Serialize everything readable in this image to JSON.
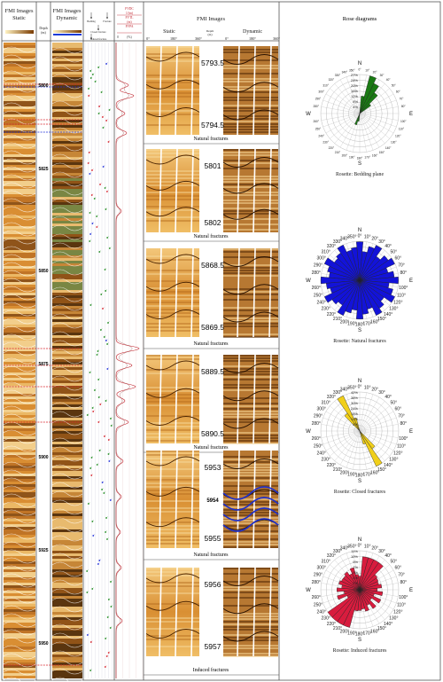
{
  "log_headers": {
    "fmi_static": "FMI Images",
    "static_sub": "Static",
    "depth": "Depth",
    "depth_unit": "(m)",
    "fmi_dynamic": "FMI Images",
    "dynamic_sub": "Dynamic",
    "legend_bedding": "Bedding",
    "legend_fracture": "Fracture",
    "legend_closed": "Closed fracture",
    "legend_induced": "Induced fracture",
    "curve_fvdc": "FVDC",
    "curve_fvdc_unit": "1/(m)",
    "curve_fvtl": "FVTL",
    "curve_fvtl_unit": "(m)",
    "curve_fvpa": "FVPA",
    "curve_fvpa_unit": "(%)",
    "curve_axis_start": "0"
  },
  "depth_ticks": [
    "5800",
    "5825",
    "5850",
    "5875",
    "5900",
    "5925",
    "5950"
  ],
  "detail_panel": {
    "header": "FMI Images",
    "static": "Static",
    "dynamic": "Dynamic",
    "depth_col": "Depth",
    "depth_unit": "(m)",
    "az_labels": [
      "0°",
      "180°",
      "360°"
    ]
  },
  "detail_groups": [
    {
      "top": "5793.5",
      "bottom": "5794.5",
      "caption": "Natural fractures"
    },
    {
      "top": "5801",
      "bottom": "5802",
      "caption": "Natural fractures"
    },
    {
      "top": "5868.5",
      "bottom": "5869.5",
      "caption": "Natural fractures"
    },
    {
      "top": "5889.5",
      "bottom": "5890.5",
      "caption": "Natural fractures"
    },
    {
      "top": "5953",
      "mid": "5954",
      "bottom": "5955",
      "caption": "Natural fractures"
    },
    {
      "top": "5956",
      "bottom": "5957",
      "caption": "Induced fractures"
    }
  ],
  "rose_header": "Rose diagrams",
  "roses": [
    {
      "caption": "Rosette: Bedding plane",
      "color": "#1a7a14",
      "compass": [
        "N",
        "W",
        "E",
        "S"
      ],
      "petals": [
        [
          20,
          1.0
        ],
        [
          30,
          0.85
        ],
        [
          40,
          0.65
        ],
        [
          10,
          0.45
        ],
        [
          50,
          0.35
        ],
        [
          200,
          0.3
        ],
        [
          190,
          0.2
        ]
      ],
      "rings": [
        "27%",
        "24%",
        "20%",
        "16%",
        "12%",
        "8%",
        "4%"
      ]
    },
    {
      "caption": "Rosette: Natural fractures",
      "color": "#1313d8",
      "compass": [
        "N",
        "W",
        "E",
        "S"
      ],
      "petals": "uniform",
      "rings": []
    },
    {
      "caption": "Rosette: Closed fractures",
      "color": "#f0cf1a",
      "compass": [
        "N",
        "W",
        "E",
        "S"
      ],
      "petals": [
        [
          330,
          1.0
        ],
        [
          150,
          1.0
        ],
        [
          320,
          0.55
        ],
        [
          140,
          0.55
        ],
        [
          340,
          0.35
        ],
        [
          160,
          0.35
        ]
      ],
      "rings": [
        "42%",
        "36%",
        "30%",
        "24%",
        "18%",
        "12%",
        "6%"
      ]
    },
    {
      "caption": "Rosette: Induced fractures",
      "color": "#d81c3e",
      "compass": [
        "N",
        "W",
        "E",
        "S"
      ],
      "petals": "induced",
      "rings": [
        "11%",
        "10%",
        "9%",
        "7%",
        "5%",
        "4%",
        "2%"
      ]
    }
  ]
}
